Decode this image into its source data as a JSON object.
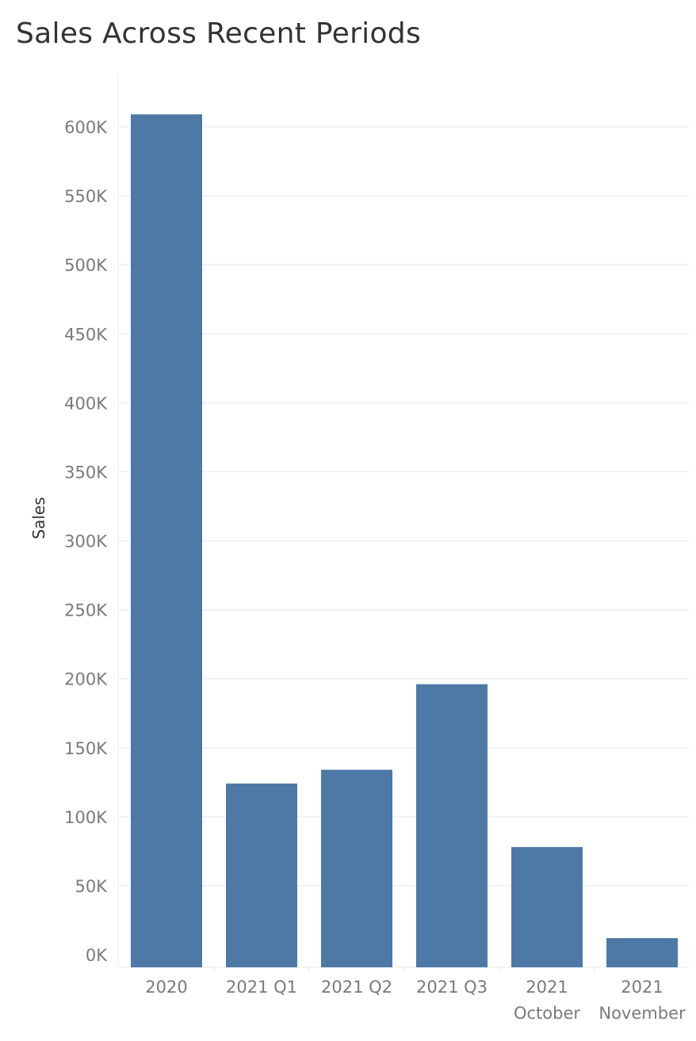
{
  "chart_data": {
    "type": "bar",
    "title": "Sales Across Recent Periods",
    "xlabel": "",
    "ylabel": "Sales",
    "categories": [
      [
        "2020"
      ],
      [
        "2021 Q1"
      ],
      [
        "2021 Q2"
      ],
      [
        "2021 Q3"
      ],
      [
        "2021",
        "October"
      ],
      [
        "2021",
        "November"
      ]
    ],
    "values": [
      609000,
      124000,
      134000,
      196000,
      78000,
      12000
    ],
    "ylim": [
      0,
      600000
    ],
    "yticks": [
      0,
      50000,
      100000,
      150000,
      200000,
      250000,
      300000,
      350000,
      400000,
      450000,
      500000,
      550000,
      600000
    ],
    "ytick_labels": [
      "0K",
      "50K",
      "100K",
      "150K",
      "200K",
      "250K",
      "300K",
      "350K",
      "400K",
      "450K",
      "500K",
      "550K",
      "600K"
    ],
    "grid": true,
    "bar_color": "#4e79a7"
  }
}
